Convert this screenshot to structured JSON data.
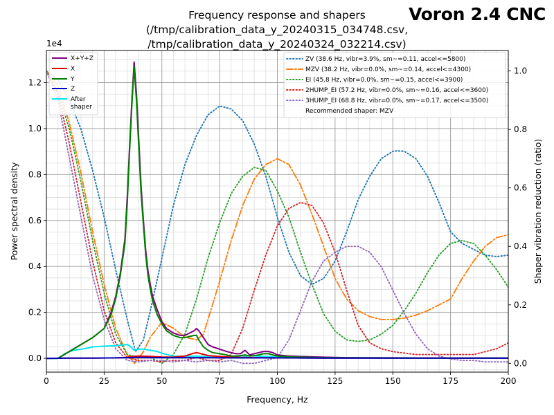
{
  "brand": "Voron 2.4 CNC",
  "chart_data": {
    "type": "line",
    "title": [
      "Frequency response and shapers",
      "(/tmp/calibration_data_y_20240315_034748.csv,",
      "/tmp/calibration_data_y_20240324_032214.csv)"
    ],
    "xlabel": "Frequency, Hz",
    "ylabel": "Power spectral density",
    "y2label": "Shaper vibration reduction (ratio)",
    "xlim": [
      0,
      200
    ],
    "ylim": [
      -0.06,
      1.34
    ],
    "y2lim": [
      -0.03,
      1.07
    ],
    "y_scale_label": "1e4",
    "x_ticks": [
      0,
      25,
      50,
      75,
      100,
      125,
      150,
      175,
      200
    ],
    "y_ticks": [
      0.0,
      0.2,
      0.4,
      0.6,
      0.8,
      1.0,
      1.2
    ],
    "y_tick_labels": [
      "0.0",
      "0.2",
      "0.4",
      "0.6",
      "0.8",
      "1.0",
      "1.2"
    ],
    "y2_ticks": [
      0.0,
      0.2,
      0.4,
      0.6,
      0.8,
      1.0
    ],
    "y2_tick_labels": [
      "0.0",
      "0.2",
      "0.4",
      "0.6",
      "0.8",
      "1.0"
    ],
    "grid": true,
    "psd_legend_placement": "upper-left",
    "shaper_legend_placement": "upper-right",
    "psd_series": [
      {
        "name": "X+Y+Z",
        "color": "#800080",
        "width": 2,
        "x": [
          0,
          5,
          10,
          15,
          20,
          25,
          28,
          30,
          32,
          34,
          35,
          36,
          37,
          38,
          39,
          40,
          41,
          42,
          43,
          44,
          45,
          46,
          48,
          50,
          52,
          55,
          58,
          60,
          62,
          64,
          65,
          66,
          68,
          70,
          72,
          75,
          78,
          80,
          82,
          84,
          86,
          88,
          90,
          92,
          94,
          96,
          98,
          100,
          105,
          110,
          120,
          130,
          150,
          175,
          200
        ],
        "y": [
          0,
          0,
          0.03,
          0.06,
          0.09,
          0.13,
          0.2,
          0.27,
          0.37,
          0.52,
          0.7,
          0.92,
          1.12,
          1.29,
          1.15,
          0.95,
          0.75,
          0.6,
          0.47,
          0.38,
          0.32,
          0.27,
          0.21,
          0.16,
          0.13,
          0.11,
          0.1,
          0.1,
          0.11,
          0.12,
          0.13,
          0.12,
          0.09,
          0.06,
          0.05,
          0.04,
          0.03,
          0.025,
          0.02,
          0.02,
          0.035,
          0.015,
          0.02,
          0.025,
          0.03,
          0.03,
          0.025,
          0.015,
          0.01,
          0.008,
          0.005,
          0.003,
          0.002,
          0.001,
          0.001
        ]
      },
      {
        "name": "X",
        "color": "#e00000",
        "width": 2,
        "x": [
          0,
          10,
          20,
          30,
          35,
          37,
          40,
          45,
          50,
          55,
          60,
          63,
          65,
          67,
          70,
          75,
          80,
          90,
          100,
          120,
          150,
          200
        ],
        "y": [
          0,
          0.001,
          0.001,
          0.002,
          0.004,
          0.008,
          0.01,
          0.008,
          0.006,
          0.005,
          0.01,
          0.02,
          0.025,
          0.02,
          0.012,
          0.008,
          0.005,
          0.003,
          0.002,
          0.001,
          0.001,
          0.001
        ]
      },
      {
        "name": "Y",
        "color": "#008000",
        "width": 2,
        "x": [
          0,
          5,
          10,
          15,
          20,
          25,
          28,
          30,
          32,
          34,
          35,
          36,
          37,
          38,
          39,
          40,
          41,
          42,
          43,
          44,
          45,
          46,
          48,
          50,
          52,
          55,
          58,
          60,
          62,
          64,
          65,
          66,
          68,
          70,
          72,
          75,
          78,
          80,
          82,
          84,
          86,
          88,
          90,
          92,
          94,
          96,
          98,
          100,
          105,
          110,
          120,
          130,
          150,
          175,
          200
        ],
        "y": [
          0,
          0,
          0.03,
          0.06,
          0.09,
          0.13,
          0.19,
          0.26,
          0.36,
          0.5,
          0.67,
          0.9,
          1.1,
          1.27,
          1.12,
          0.92,
          0.72,
          0.58,
          0.45,
          0.36,
          0.3,
          0.25,
          0.19,
          0.15,
          0.12,
          0.1,
          0.09,
          0.09,
          0.095,
          0.1,
          0.1,
          0.08,
          0.05,
          0.035,
          0.025,
          0.02,
          0.015,
          0.01,
          0.01,
          0.012,
          0.015,
          0.01,
          0.012,
          0.015,
          0.02,
          0.02,
          0.015,
          0.01,
          0.007,
          0.005,
          0.003,
          0.002,
          0.001,
          0.001,
          0.001
        ]
      },
      {
        "name": "Z",
        "color": "#0000c0",
        "width": 2,
        "x": [
          0,
          10,
          20,
          30,
          40,
          50,
          60,
          70,
          80,
          90,
          100,
          120,
          150,
          200
        ],
        "y": [
          0,
          0.001,
          0.001,
          0.002,
          0.004,
          0.003,
          0.003,
          0.003,
          0.002,
          0.002,
          0.002,
          0.001,
          0.001,
          0.001
        ]
      },
      {
        "name": "After\nshaper",
        "color": "#00e5ee",
        "width": 2,
        "x": [
          0,
          5,
          8,
          10,
          12,
          15,
          18,
          20,
          25,
          30,
          33,
          35,
          36,
          37,
          38,
          40,
          42,
          45,
          48,
          50,
          55,
          60,
          65,
          70,
          75,
          80,
          85,
          88,
          90,
          95,
          100,
          110,
          120,
          150,
          200
        ],
        "y": [
          0,
          0,
          0.02,
          0.03,
          0.035,
          0.04,
          0.045,
          0.05,
          0.053,
          0.055,
          0.058,
          0.06,
          0.055,
          0.045,
          0.035,
          0.04,
          0.04,
          0.035,
          0.03,
          0.022,
          0.01,
          0.008,
          0.01,
          0.007,
          0.005,
          0.005,
          0.006,
          0.012,
          0.01,
          0.008,
          0.006,
          0.005,
          0.003,
          0.002,
          0.001
        ]
      }
    ],
    "shaper_series": [
      {
        "name": "ZV (38.6 Hz, vibr=3.9%, sm~=0.11, accel<=5800)",
        "color": "#1f77b4",
        "dash": "dotted",
        "x": [
          0,
          5,
          10,
          15,
          20,
          25,
          30,
          35,
          38.6,
          42,
          45,
          50,
          55,
          60,
          65,
          70,
          75,
          80,
          85,
          90,
          95,
          100,
          105,
          110,
          115,
          120,
          125,
          130,
          135,
          140,
          145,
          150,
          152,
          155,
          160,
          165,
          170,
          175,
          180,
          185,
          190,
          195,
          200
        ],
        "y": [
          1.0,
          0.97,
          0.9,
          0.8,
          0.66,
          0.5,
          0.32,
          0.15,
          0.04,
          0.08,
          0.18,
          0.36,
          0.54,
          0.68,
          0.78,
          0.85,
          0.88,
          0.87,
          0.83,
          0.75,
          0.64,
          0.5,
          0.38,
          0.3,
          0.27,
          0.29,
          0.35,
          0.45,
          0.56,
          0.64,
          0.7,
          0.725,
          0.727,
          0.725,
          0.7,
          0.64,
          0.55,
          0.45,
          0.41,
          0.39,
          0.37,
          0.365,
          0.37
        ]
      },
      {
        "name": "MZV (38.2 Hz, vibr=0.0%, sm~=0.14, accel<=4300)",
        "color": "#ff7f0e",
        "dash": "dashdot",
        "x": [
          0,
          5,
          10,
          15,
          20,
          25,
          30,
          35,
          38.2,
          42,
          45,
          50,
          55,
          60,
          65,
          68,
          70,
          75,
          80,
          85,
          90,
          95,
          100,
          105,
          110,
          115,
          120,
          125,
          130,
          135,
          140,
          145,
          150,
          155,
          160,
          165,
          170,
          175,
          180,
          185,
          190,
          195,
          200
        ],
        "y": [
          1.0,
          0.95,
          0.82,
          0.65,
          0.45,
          0.27,
          0.12,
          0.03,
          0.0,
          0.04,
          0.09,
          0.14,
          0.12,
          0.09,
          0.08,
          0.1,
          0.15,
          0.28,
          0.42,
          0.54,
          0.63,
          0.68,
          0.7,
          0.68,
          0.61,
          0.51,
          0.4,
          0.29,
          0.22,
          0.18,
          0.16,
          0.15,
          0.15,
          0.155,
          0.165,
          0.18,
          0.2,
          0.22,
          0.29,
          0.35,
          0.4,
          0.43,
          0.44
        ]
      },
      {
        "name": "EI (45.8 Hz, vibr=0.0%, sm~=0.15, accel<=3900)",
        "color": "#2ca02c",
        "dash": "dotted",
        "x": [
          0,
          5,
          10,
          15,
          20,
          25,
          30,
          35,
          40,
          45,
          50,
          55,
          60,
          65,
          70,
          75,
          80,
          85,
          90,
          95,
          100,
          105,
          110,
          115,
          120,
          125,
          130,
          135,
          140,
          145,
          150,
          155,
          160,
          165,
          170,
          175,
          180,
          185,
          190,
          195,
          200
        ],
        "y": [
          1.0,
          0.93,
          0.8,
          0.62,
          0.42,
          0.24,
          0.1,
          0.03,
          0.02,
          0.02,
          0.0,
          0.03,
          0.1,
          0.22,
          0.36,
          0.48,
          0.58,
          0.64,
          0.67,
          0.66,
          0.59,
          0.5,
          0.38,
          0.27,
          0.17,
          0.11,
          0.08,
          0.075,
          0.08,
          0.1,
          0.13,
          0.18,
          0.24,
          0.31,
          0.37,
          0.41,
          0.42,
          0.41,
          0.37,
          0.32,
          0.26
        ]
      },
      {
        "name": "2HUMP_EI (57.2 Hz, vibr=0.0%, sm~=0.16, accel<=3600)",
        "color": "#d62728",
        "dash": "dotted",
        "x": [
          0,
          5,
          10,
          15,
          20,
          25,
          30,
          35,
          40,
          45,
          50,
          55,
          60,
          65,
          70,
          75,
          80,
          85,
          90,
          95,
          100,
          105,
          110,
          115,
          120,
          125,
          130,
          135,
          140,
          145,
          150,
          155,
          160,
          165,
          170,
          175,
          180,
          185,
          190,
          195,
          200
        ],
        "y": [
          1.0,
          0.92,
          0.75,
          0.55,
          0.35,
          0.18,
          0.07,
          0.02,
          0.01,
          0.01,
          0.005,
          0.01,
          0.01,
          0.02,
          0.01,
          0.01,
          0.03,
          0.12,
          0.25,
          0.37,
          0.47,
          0.53,
          0.55,
          0.54,
          0.48,
          0.38,
          0.25,
          0.13,
          0.07,
          0.05,
          0.04,
          0.035,
          0.03,
          0.03,
          0.03,
          0.03,
          0.03,
          0.03,
          0.04,
          0.05,
          0.07
        ]
      },
      {
        "name": "3HUMP_EI (68.8 Hz, vibr=0.0%, sm~=0.17, accel<=3500)",
        "color": "#9467bd",
        "dash": "dotted",
        "x": [
          0,
          5,
          10,
          15,
          20,
          25,
          30,
          35,
          40,
          45,
          50,
          55,
          60,
          65,
          70,
          75,
          80,
          85,
          90,
          95,
          100,
          105,
          110,
          115,
          120,
          125,
          130,
          135,
          140,
          145,
          150,
          155,
          160,
          165,
          170,
          175,
          180,
          185,
          190,
          195,
          200
        ],
        "y": [
          1.0,
          0.9,
          0.7,
          0.5,
          0.3,
          0.15,
          0.05,
          0.01,
          0.005,
          0.01,
          0.01,
          0.005,
          0.01,
          0.005,
          0.01,
          0.005,
          0.01,
          0.0,
          0.0,
          0.01,
          0.02,
          0.08,
          0.18,
          0.28,
          0.35,
          0.38,
          0.4,
          0.4,
          0.38,
          0.33,
          0.25,
          0.17,
          0.1,
          0.05,
          0.025,
          0.015,
          0.01,
          0.01,
          0.005,
          0.005,
          0.005
        ]
      }
    ],
    "recommended_label": "Recommended shaper: MZV"
  }
}
